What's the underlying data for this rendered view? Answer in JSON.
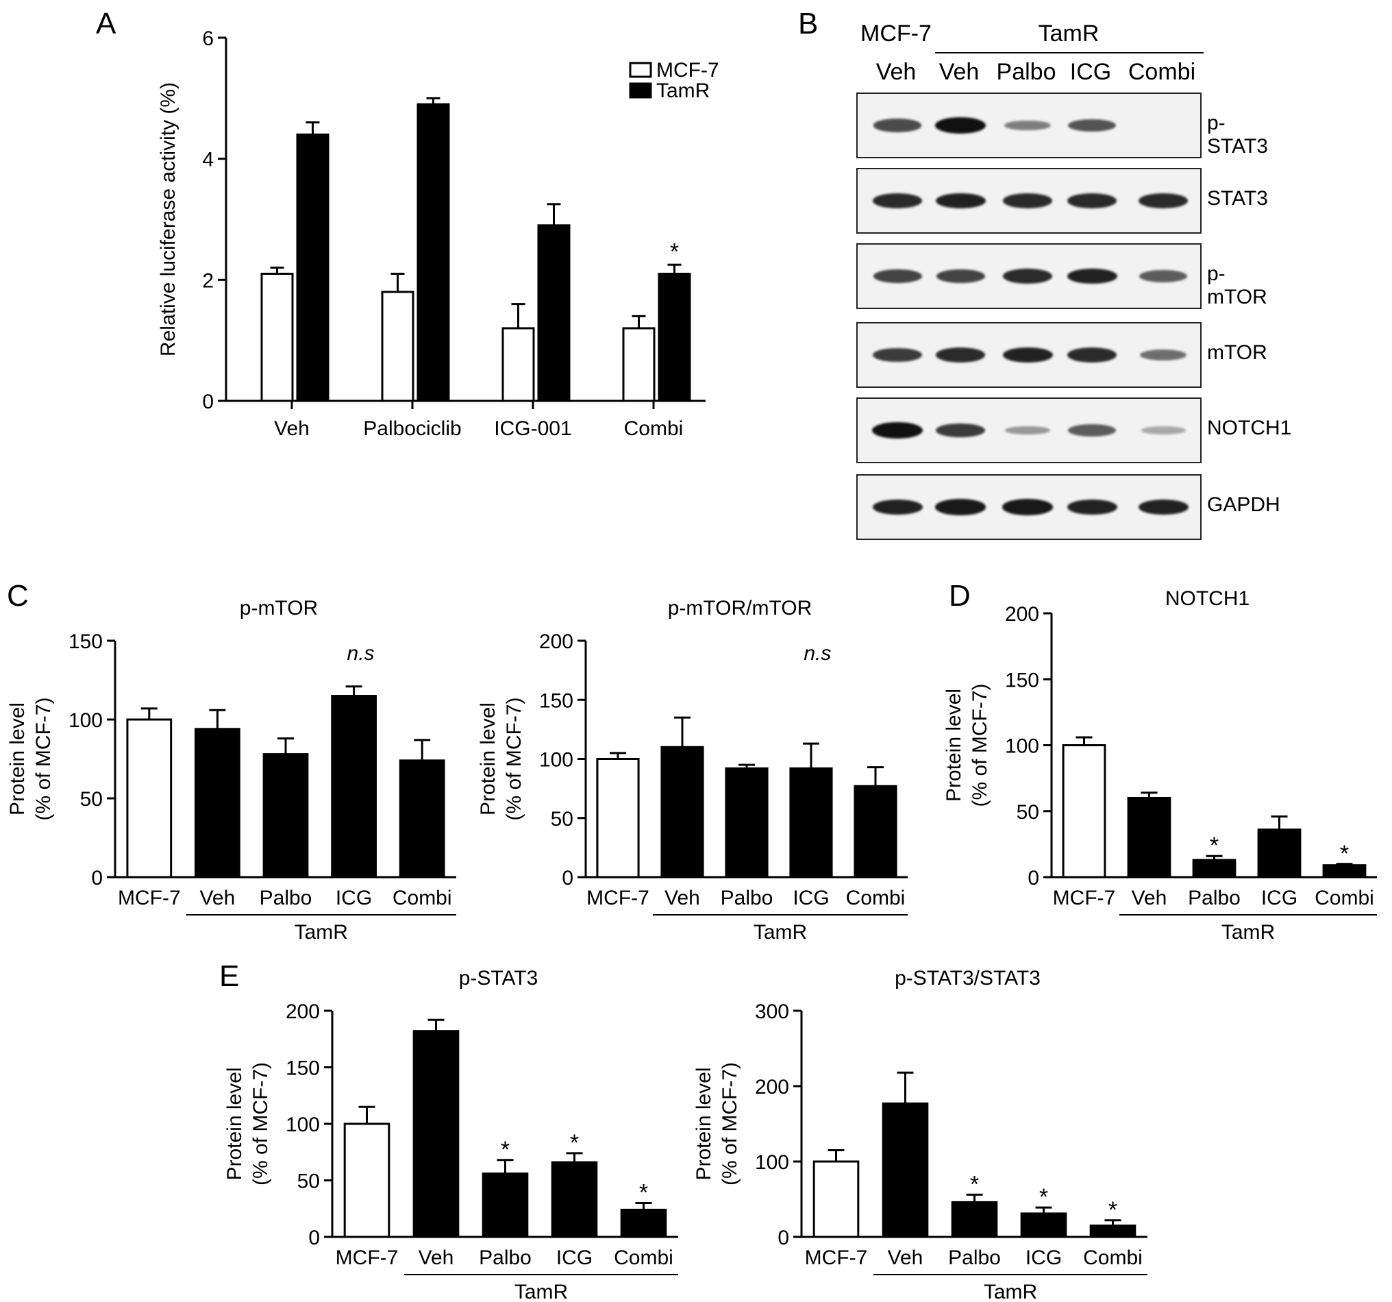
{
  "panels": {
    "A": "A",
    "B": "B",
    "C": "C",
    "D": "D",
    "E": "E"
  },
  "chart_data": [
    {
      "id": "A",
      "type": "bar",
      "title": "",
      "ylabel": "Relative luciferase activity (%)",
      "xlabel": "",
      "categories": [
        "Veh",
        "Palbociclib",
        "ICG-001",
        "Combi"
      ],
      "ylim": [
        0,
        6
      ],
      "yticks": [
        0,
        2,
        4,
        6
      ],
      "legend_placement": "top-right",
      "series": [
        {
          "name": "MCF-7",
          "fill": "#ffffff",
          "values": [
            2.1,
            1.8,
            1.2,
            1.2
          ],
          "errors": [
            0.1,
            0.3,
            0.4,
            0.2
          ]
        },
        {
          "name": "TamR",
          "fill": "#000000",
          "values": [
            4.4,
            4.9,
            2.9,
            2.1
          ],
          "errors": [
            0.2,
            0.1,
            0.35,
            0.15
          ]
        }
      ],
      "annotations": [
        {
          "series": 1,
          "index": 3,
          "text": "*"
        }
      ]
    },
    {
      "id": "C1",
      "type": "bar",
      "title": "p-mTOR",
      "ylabel": "Protein level\n(% of MCF-7)",
      "categories": [
        "MCF-7",
        "Veh",
        "Palbo",
        "ICG",
        "Combi"
      ],
      "group_label": "TamR",
      "ylim": [
        0,
        150
      ],
      "yticks": [
        0,
        50,
        100,
        150
      ],
      "values": [
        100,
        94,
        78,
        115,
        74
      ],
      "errors": [
        7,
        12,
        10,
        6,
        13
      ],
      "fills": [
        "#ffffff",
        "#000000",
        "#000000",
        "#000000",
        "#000000"
      ],
      "significance": [
        "",
        "",
        "",
        "",
        ""
      ],
      "note": "n.s"
    },
    {
      "id": "C2",
      "type": "bar",
      "title": "p-mTOR/mTOR",
      "ylabel": "Protein level\n(% of MCF-7)",
      "categories": [
        "MCF-7",
        "Veh",
        "Palbo",
        "ICG",
        "Combi"
      ],
      "group_label": "TamR",
      "ylim": [
        0,
        200
      ],
      "yticks": [
        0,
        50,
        100,
        150,
        200
      ],
      "values": [
        100,
        110,
        92,
        92,
        77
      ],
      "errors": [
        5,
        25,
        3,
        21,
        16
      ],
      "fills": [
        "#ffffff",
        "#000000",
        "#000000",
        "#000000",
        "#000000"
      ],
      "significance": [
        "",
        "",
        "",
        "",
        ""
      ],
      "note": "n.s"
    },
    {
      "id": "D",
      "type": "bar",
      "title": "NOTCH1",
      "ylabel": "Protein level\n(% of MCF-7)",
      "categories": [
        "MCF-7",
        "Veh",
        "Palbo",
        "ICG",
        "Combi"
      ],
      "group_label": "TamR",
      "ylim": [
        0,
        200
      ],
      "yticks": [
        0,
        50,
        100,
        150,
        200
      ],
      "values": [
        100,
        60,
        13,
        36,
        9
      ],
      "errors": [
        6,
        4,
        3,
        10,
        1
      ],
      "fills": [
        "#ffffff",
        "#000000",
        "#000000",
        "#000000",
        "#000000"
      ],
      "significance": [
        "",
        "",
        "*",
        "",
        "*"
      ],
      "note": ""
    },
    {
      "id": "E1",
      "type": "bar",
      "title": "p-STAT3",
      "ylabel": "Protein level\n(% of MCF-7)",
      "categories": [
        "MCF-7",
        "Veh",
        "Palbo",
        "ICG",
        "Combi"
      ],
      "group_label": "TamR",
      "ylim": [
        0,
        200
      ],
      "yticks": [
        0,
        50,
        100,
        150,
        200
      ],
      "values": [
        100,
        182,
        56,
        66,
        24
      ],
      "errors": [
        15,
        10,
        12,
        8,
        6
      ],
      "fills": [
        "#ffffff",
        "#000000",
        "#000000",
        "#000000",
        "#000000"
      ],
      "significance": [
        "",
        "",
        "*",
        "*",
        "*"
      ],
      "note": ""
    },
    {
      "id": "E2",
      "type": "bar",
      "title": "p-STAT3/STAT3",
      "ylabel": "Protein level\n(% of MCF-7)",
      "categories": [
        "MCF-7",
        "Veh",
        "Palbo",
        "ICG",
        "Combi"
      ],
      "group_label": "TamR",
      "ylim": [
        0,
        300
      ],
      "yticks": [
        0,
        100,
        200,
        300
      ],
      "values": [
        100,
        177,
        46,
        31,
        15
      ],
      "errors": [
        15,
        41,
        10,
        8,
        7
      ],
      "fills": [
        "#ffffff",
        "#000000",
        "#000000",
        "#000000",
        "#000000"
      ],
      "significance": [
        "",
        "",
        "*",
        "*",
        "*"
      ],
      "note": ""
    }
  ],
  "blot": {
    "lane_group_left": "MCF-7",
    "lane_group_right": "TamR",
    "lanes": [
      "Veh",
      "Veh",
      "Palbo",
      "ICG",
      "Combi"
    ],
    "rows": [
      {
        "label": "p-STAT3",
        "intensities": [
          0.65,
          1.0,
          0.35,
          0.6,
          0.0
        ]
      },
      {
        "label": "STAT3",
        "intensities": [
          0.85,
          0.9,
          0.85,
          0.85,
          0.85
        ]
      },
      {
        "label": "p-mTOR",
        "intensities": [
          0.7,
          0.7,
          0.85,
          0.9,
          0.55
        ]
      },
      {
        "label": "mTOR",
        "intensities": [
          0.75,
          0.85,
          0.9,
          0.85,
          0.45
        ]
      },
      {
        "label": "NOTCH1",
        "intensities": [
          1.0,
          0.75,
          0.2,
          0.55,
          0.1
        ]
      },
      {
        "label": "GAPDH",
        "intensities": [
          0.9,
          0.95,
          0.95,
          0.9,
          0.9
        ]
      }
    ]
  }
}
